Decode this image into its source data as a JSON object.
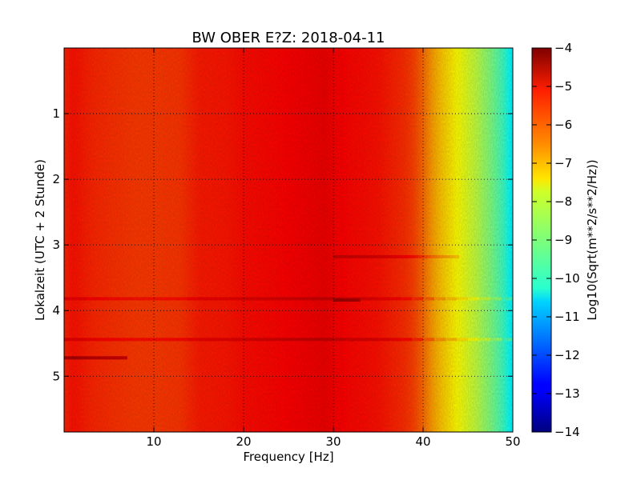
{
  "chart_data": {
    "type": "heatmap",
    "title": "BW OBER E?Z: 2018-04-11",
    "xlabel": "Frequency [Hz]",
    "ylabel": "Lokalzeit (UTC + 2 Stunde)",
    "colorbar_label": "Log10(Sqrt(m**2/s**2/Hz))",
    "xlim": [
      0,
      50
    ],
    "ylim": [
      5.85,
      0
    ],
    "x_ticks": [
      10,
      20,
      30,
      40,
      50
    ],
    "y_ticks": [
      1,
      2,
      3,
      4,
      5
    ],
    "colorbar_range": [
      -14,
      -4
    ],
    "colorbar_ticks": [
      -4,
      -5,
      -6,
      -7,
      -8,
      -9,
      -10,
      -11,
      -12,
      -13,
      -14
    ],
    "colormap": "jet",
    "grid": "dotted",
    "frequency_profile": {
      "x": [
        0,
        1,
        3,
        5,
        8,
        10,
        13,
        15,
        18,
        20,
        23,
        25,
        28,
        29,
        30,
        32,
        35,
        37,
        38,
        39,
        40,
        41,
        42,
        43,
        44,
        45,
        46,
        47,
        48,
        49,
        49.5,
        50
      ],
      "value": [
        -5.6,
        -5.4,
        -5.6,
        -5.7,
        -5.8,
        -5.8,
        -5.75,
        -5.5,
        -5.45,
        -5.35,
        -5.3,
        -5.25,
        -5.15,
        -5.1,
        -5.2,
        -5.3,
        -5.4,
        -5.6,
        -5.7,
        -5.9,
        -6.3,
        -6.8,
        -7.2,
        -7.5,
        -7.8,
        -8.1,
        -8.4,
        -8.8,
        -9.2,
        -9.7,
        -10.1,
        -10.4
      ]
    },
    "bright_bands": [
      {
        "time": 3.18,
        "x_from": 30,
        "x_to": 44,
        "delta": 0.5
      },
      {
        "time": 3.82,
        "x_from": 0,
        "x_to": 50,
        "delta": 0.4
      },
      {
        "time": 3.84,
        "x_from": 30,
        "x_to": 33,
        "delta": 0.9
      },
      {
        "time": 4.44,
        "x_from": 0,
        "x_to": 50,
        "delta": 0.45
      },
      {
        "time": 4.72,
        "x_from": 0,
        "x_to": 7,
        "delta": 1.0
      }
    ]
  }
}
